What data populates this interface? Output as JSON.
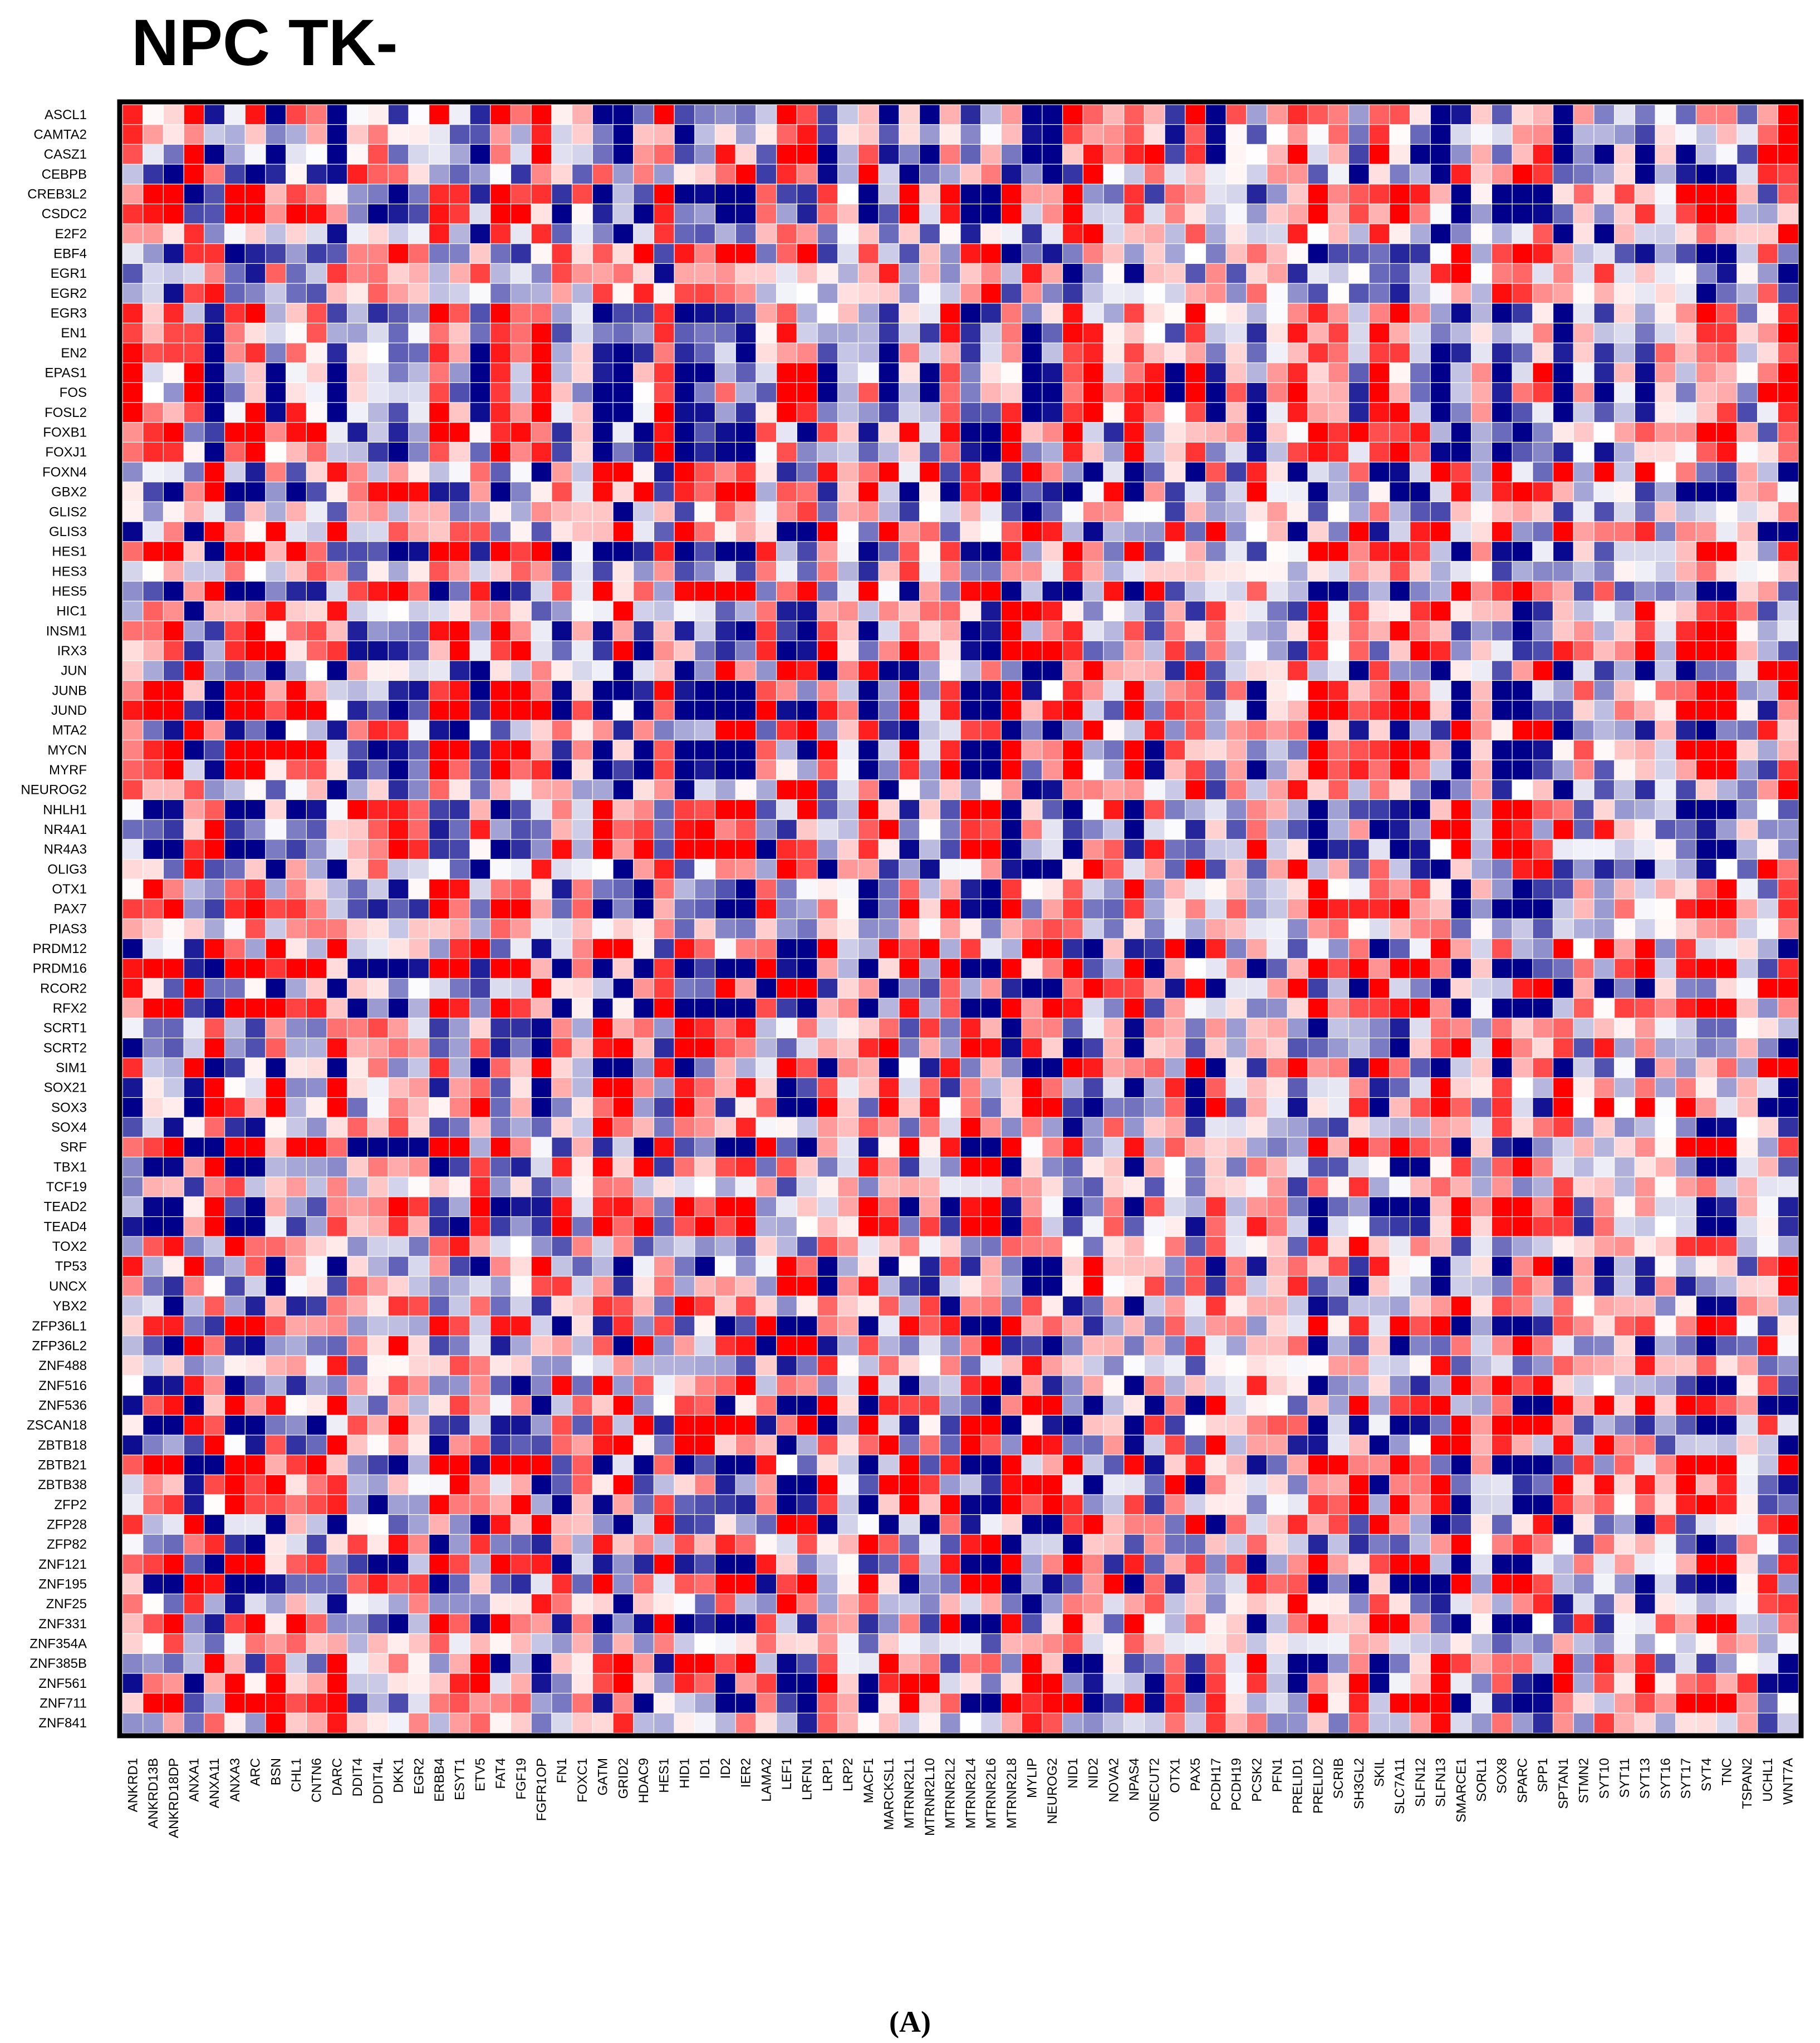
{
  "chart_data": {
    "type": "heatmap",
    "title": "NPC TK-",
    "panel_label": "(A)",
    "color_scale": {
      "low": "#00008B",
      "mid": "#FFFFFF",
      "high": "#FF0000"
    },
    "value_range": [
      -1,
      1
    ],
    "rows": [
      "ASCL1",
      "CAMTA2",
      "CASZ1",
      "CEBPB",
      "CREB3L2",
      "CSDC2",
      "E2F2",
      "EBF4",
      "EGR1",
      "EGR2",
      "EGR3",
      "EN1",
      "EN2",
      "EPAS1",
      "FOS",
      "FOSL2",
      "FOXB1",
      "FOXJ1",
      "FOXN4",
      "GBX2",
      "GLIS2",
      "GLIS3",
      "HES1",
      "HES3",
      "HES5",
      "HIC1",
      "INSM1",
      "IRX3",
      "JUN",
      "JUNB",
      "JUND",
      "MTA2",
      "MYCN",
      "MYRF",
      "NEUROG2",
      "NHLH1",
      "NR4A1",
      "NR4A3",
      "OLIG3",
      "OTX1",
      "PAX7",
      "PIAS3",
      "PRDM12",
      "PRDM16",
      "RCOR2",
      "RFX2",
      "SCRT1",
      "SCRT2",
      "SIM1",
      "SOX21",
      "SOX3",
      "SOX4",
      "SRF",
      "TBX1",
      "TCF19",
      "TEAD2",
      "TEAD4",
      "TOX2",
      "TP53",
      "UNCX",
      "YBX2",
      "ZFP36L1",
      "ZFP36L2",
      "ZNF488",
      "ZNF516",
      "ZNF536",
      "ZSCAN18",
      "ZBTB18",
      "ZBTB21",
      "ZBTB38",
      "ZFP2",
      "ZFP28",
      "ZFP82",
      "ZNF121",
      "ZNF195",
      "ZNF25",
      "ZNF331",
      "ZNF354A",
      "ZNF385B",
      "ZNF561",
      "ZNF711",
      "ZNF841"
    ],
    "columns": [
      "ANKRD1",
      "ANKRD13B",
      "ANKRD18DP",
      "ANXA1",
      "ANXA11",
      "ANXA3",
      "ARC",
      "BSN",
      "CHL1",
      "CNTN6",
      "DARC",
      "DDIT4",
      "DDIT4L",
      "DKK1",
      "EGR2",
      "ERBB4",
      "ESYT1",
      "ETV5",
      "FAT4",
      "FGF19",
      "FGFR1OP",
      "FN1",
      "FOXC1",
      "GATM",
      "GRID2",
      "HDAC9",
      "HES1",
      "HID1",
      "ID1",
      "ID2",
      "IER2",
      "LAMA2",
      "LEF1",
      "LRFN1",
      "LRP1",
      "LRP2",
      "MACF1",
      "MARCKSL1",
      "MTRNR2L1",
      "MTRNR2L10",
      "MTRNR2L2",
      "MTRNR2L4",
      "MTRNR2L6",
      "MTRNR2L8",
      "MYLIP",
      "NEUROG2",
      "NID1",
      "NID2",
      "NOVA2",
      "NPAS4",
      "ONECUT2",
      "OTX1",
      "PAX5",
      "PCDH17",
      "PCDH19",
      "PCSK2",
      "PFN1",
      "PRELID1",
      "PRELID2",
      "SCRIB",
      "SH3GL2",
      "SKIL",
      "SLC7A11",
      "SLFN12",
      "SLFN13",
      "SMARCE1",
      "SORL1",
      "SOX8",
      "SPARC",
      "SPP1",
      "SPTAN1",
      "STMN2",
      "SYT10",
      "SYT11",
      "SYT13",
      "SYT16",
      "SYT17",
      "SYT4",
      "TNC",
      "TSPAN2",
      "UCHL1",
      "WNT7A"
    ],
    "value_seed": 97,
    "value_note": ""
  }
}
